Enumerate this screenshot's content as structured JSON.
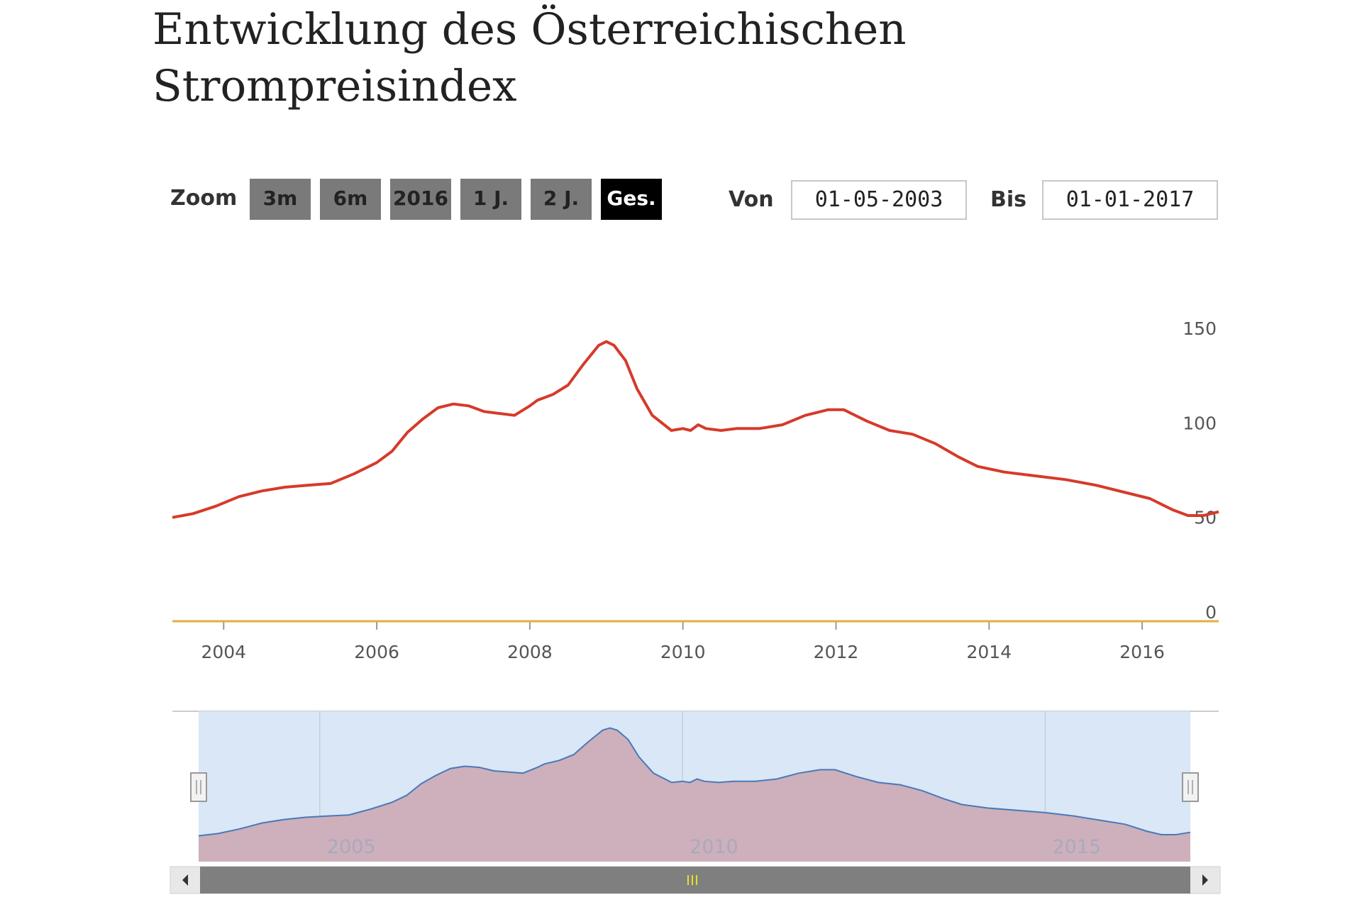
{
  "title": "Entwicklung des Österreichischen Strompreisindex",
  "toolbar": {
    "zoom_label": "Zoom",
    "buttons": [
      "3m",
      "6m",
      "2016",
      "1 J.",
      "2 J.",
      "Ges."
    ],
    "active_button": "Ges.",
    "from_label": "Von",
    "from_value": "01-05-2003",
    "to_label": "Bis",
    "to_value": "01-01-2017"
  },
  "colors": {
    "series_line": "#d63a2a",
    "baseline": "#e0b040",
    "navigator_fill": "#cdb0bb",
    "navigator_line": "#4a78b8",
    "navigator_mask": "#d9e7f6",
    "scrollbar": "#7f7f7f",
    "active_button": "#000000"
  },
  "chart_data": {
    "type": "line",
    "title": "Entwicklung des Österreichischen Strompreisindex",
    "xlabel": "",
    "ylabel": "",
    "xlim": [
      2003.33,
      2017.0
    ],
    "ylim": [
      0,
      150
    ],
    "yticks": [
      0,
      50,
      100,
      150
    ],
    "xticks": [
      2004,
      2006,
      2008,
      2010,
      2012,
      2014,
      2016
    ],
    "grid": false,
    "legend": "none",
    "x": [
      2003.33,
      2003.6,
      2003.9,
      2004.2,
      2004.5,
      2004.8,
      2005.1,
      2005.4,
      2005.7,
      2006.0,
      2006.2,
      2006.4,
      2006.6,
      2006.8,
      2007.0,
      2007.2,
      2007.4,
      2007.6,
      2007.8,
      2008.0,
      2008.1,
      2008.3,
      2008.5,
      2008.7,
      2008.9,
      2009.0,
      2009.1,
      2009.25,
      2009.4,
      2009.6,
      2009.85,
      2010.0,
      2010.1,
      2010.2,
      2010.3,
      2010.5,
      2010.7,
      2011.0,
      2011.3,
      2011.6,
      2011.9,
      2012.1,
      2012.4,
      2012.7,
      2013.0,
      2013.3,
      2013.6,
      2013.85,
      2014.2,
      2014.6,
      2015.0,
      2015.4,
      2015.8,
      2016.1,
      2016.4,
      2016.6,
      2016.8,
      2017.0
    ],
    "series": [
      {
        "name": "",
        "values": [
          50,
          52,
          56,
          61,
          64,
          66,
          67,
          68,
          73,
          79,
          85,
          95,
          102,
          108,
          110,
          109,
          106,
          105,
          104,
          109,
          112,
          115,
          120,
          131,
          141,
          143,
          141,
          133,
          118,
          104,
          96,
          97,
          96,
          99,
          97,
          96,
          97,
          97,
          99,
          104,
          107,
          107,
          101,
          96,
          94,
          89,
          82,
          77,
          74,
          72,
          70,
          67,
          63,
          60,
          54,
          51,
          51,
          53
        ]
      }
    ],
    "navigator": {
      "xlim": [
        2003.33,
        2017.0
      ],
      "xticks": [
        2005,
        2010,
        2015
      ]
    }
  }
}
